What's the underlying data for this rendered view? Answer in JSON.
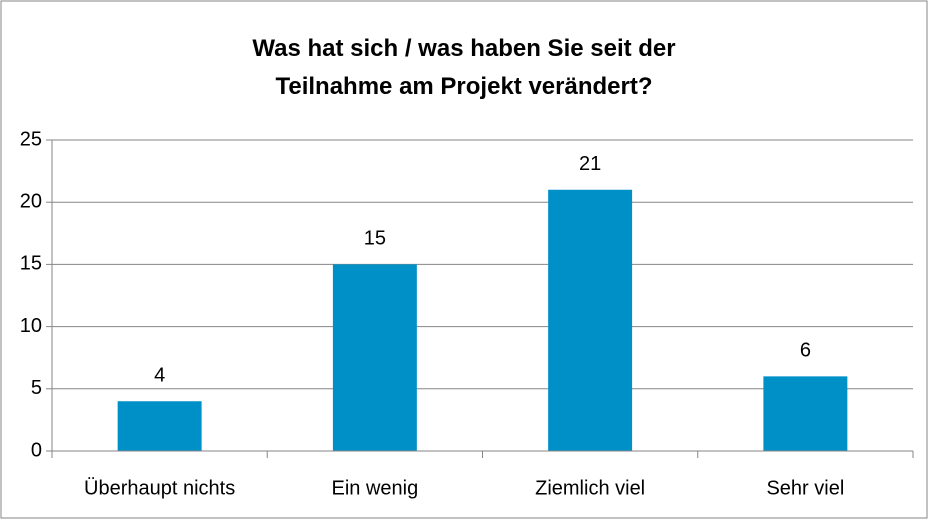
{
  "chart_data": {
    "type": "bar",
    "title": "Was hat sich / was haben Sie seit der Teilnahme am Projekt verändert?",
    "categories": [
      "Überhaupt nichts",
      "Ein wenig",
      "Ziemlich viel",
      "Sehr viel"
    ],
    "values": [
      4,
      15,
      21,
      6
    ],
    "color": "#0090c8",
    "ylim": [
      0,
      25
    ],
    "yticks": [
      0,
      5,
      10,
      15,
      20,
      25
    ],
    "grid": true,
    "data_labels": true
  }
}
